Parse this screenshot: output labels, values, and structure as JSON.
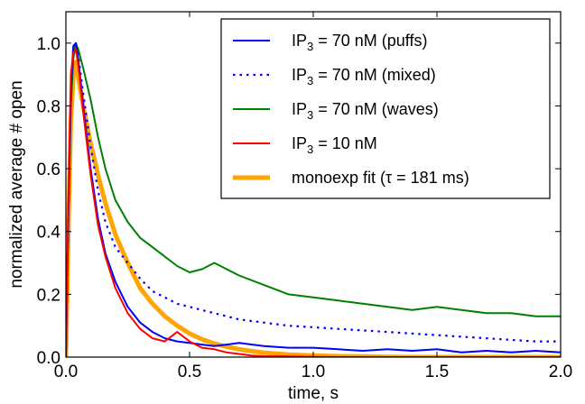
{
  "chart_data": {
    "type": "line",
    "xlabel": "time, s",
    "ylabel": "normalized average # open",
    "xlim": [
      0.0,
      2.0
    ],
    "ylim": [
      0.0,
      1.1
    ],
    "xticks": [
      0.0,
      0.5,
      1.0,
      1.5,
      2.0
    ],
    "xtick_labels": [
      "0.0",
      "0.5",
      "1.0",
      "1.5",
      "2.0"
    ],
    "yticks": [
      0.0,
      0.2,
      0.4,
      0.6,
      0.8,
      1.0
    ],
    "ytick_labels": [
      "0.0",
      "0.2",
      "0.4",
      "0.6",
      "0.8",
      "1.0"
    ],
    "grid": false,
    "legend_position": "top-right",
    "series": [
      {
        "name": "IP3 = 70 nM (puffs)",
        "label_main": "IP",
        "label_sub": "3",
        "label_rest": " = 70 nM (puffs)",
        "color": "#0000ff",
        "style": "solid",
        "x": [
          0.0,
          0.01,
          0.02,
          0.03,
          0.04,
          0.05,
          0.07,
          0.1,
          0.13,
          0.16,
          0.2,
          0.25,
          0.3,
          0.35,
          0.4,
          0.45,
          0.5,
          0.55,
          0.6,
          0.65,
          0.7,
          0.8,
          0.9,
          1.0,
          1.1,
          1.2,
          1.3,
          1.4,
          1.5,
          1.6,
          1.7,
          1.8,
          1.9,
          2.0
        ],
        "y": [
          0.0,
          0.45,
          0.85,
          0.99,
          1.0,
          0.95,
          0.8,
          0.6,
          0.44,
          0.33,
          0.24,
          0.16,
          0.11,
          0.08,
          0.06,
          0.05,
          0.045,
          0.04,
          0.035,
          0.04,
          0.045,
          0.035,
          0.03,
          0.03,
          0.025,
          0.02,
          0.025,
          0.02,
          0.025,
          0.015,
          0.02,
          0.015,
          0.02,
          0.015
        ]
      },
      {
        "name": "IP3 = 70 nM (mixed)",
        "label_main": "IP",
        "label_sub": "3",
        "label_rest": " = 70 nM (mixed)",
        "color": "#0000ff",
        "style": "dotted",
        "x": [
          0.0,
          0.01,
          0.02,
          0.03,
          0.04,
          0.05,
          0.07,
          0.1,
          0.13,
          0.16,
          0.2,
          0.25,
          0.3,
          0.35,
          0.4,
          0.45,
          0.5,
          0.55,
          0.6,
          0.65,
          0.7,
          0.8,
          0.9,
          1.0,
          1.1,
          1.2,
          1.3,
          1.4,
          1.5,
          1.6,
          1.7,
          1.8,
          1.9,
          2.0
        ],
        "y": [
          0.0,
          0.45,
          0.85,
          0.99,
          1.0,
          0.96,
          0.84,
          0.67,
          0.53,
          0.43,
          0.35,
          0.3,
          0.25,
          0.21,
          0.19,
          0.17,
          0.16,
          0.15,
          0.14,
          0.13,
          0.12,
          0.11,
          0.1,
          0.095,
          0.09,
          0.085,
          0.08,
          0.075,
          0.07,
          0.065,
          0.06,
          0.055,
          0.05,
          0.05
        ]
      },
      {
        "name": "IP3 = 70 nM (waves)",
        "label_main": "IP",
        "label_sub": "3",
        "label_rest": " = 70 nM (waves)",
        "color": "#008000",
        "style": "solid",
        "x": [
          0.0,
          0.01,
          0.02,
          0.03,
          0.04,
          0.05,
          0.07,
          0.1,
          0.13,
          0.16,
          0.2,
          0.25,
          0.3,
          0.35,
          0.4,
          0.45,
          0.5,
          0.55,
          0.6,
          0.65,
          0.7,
          0.8,
          0.9,
          1.0,
          1.1,
          1.2,
          1.3,
          1.4,
          1.5,
          1.6,
          1.7,
          1.8,
          1.9,
          2.0
        ],
        "y": [
          0.0,
          0.45,
          0.8,
          0.95,
          1.0,
          0.98,
          0.92,
          0.82,
          0.7,
          0.6,
          0.5,
          0.43,
          0.38,
          0.35,
          0.32,
          0.29,
          0.27,
          0.28,
          0.3,
          0.28,
          0.26,
          0.23,
          0.2,
          0.19,
          0.18,
          0.17,
          0.16,
          0.15,
          0.16,
          0.15,
          0.14,
          0.14,
          0.13,
          0.13
        ]
      },
      {
        "name": "IP3 = 10 nM",
        "label_main": "IP",
        "label_sub": "3",
        "label_rest": " = 10 nM",
        "color": "#ff0000",
        "style": "solid",
        "x": [
          0.0,
          0.01,
          0.02,
          0.03,
          0.04,
          0.05,
          0.07,
          0.1,
          0.13,
          0.16,
          0.2,
          0.25,
          0.3,
          0.35,
          0.4,
          0.45,
          0.5,
          0.55,
          0.6,
          0.65,
          0.7,
          0.75,
          0.8,
          0.9,
          1.0,
          1.1,
          1.2,
          1.3,
          1.4,
          1.5,
          1.6,
          1.7,
          1.8,
          1.9,
          2.0
        ],
        "y": [
          0.0,
          0.5,
          0.9,
          0.97,
          0.98,
          0.93,
          0.78,
          0.58,
          0.42,
          0.32,
          0.22,
          0.14,
          0.09,
          0.06,
          0.05,
          0.08,
          0.05,
          0.03,
          0.025,
          0.015,
          0.01,
          0.005,
          0.003,
          0.002,
          0.001,
          0.0,
          0.0,
          0.0,
          0.0,
          0.0,
          0.0,
          0.0,
          0.0,
          0.0,
          0.0
        ]
      },
      {
        "name": "monoexp fit (τ = 181 ms)",
        "label_main": "monoexp fit (τ  =  181 ms)",
        "label_sub": "",
        "label_rest": "",
        "color": "#ffa500",
        "style": "thick",
        "x": [
          0.0,
          0.01,
          0.02,
          0.03,
          0.04,
          0.05,
          0.07,
          0.1,
          0.13,
          0.16,
          0.2,
          0.25,
          0.3,
          0.35,
          0.4,
          0.45,
          0.5,
          0.55,
          0.6,
          0.65,
          0.7,
          0.75,
          0.8,
          0.9,
          1.0,
          1.1,
          1.2,
          1.3,
          1.4,
          1.5,
          1.6,
          1.7,
          1.8,
          1.9,
          2.0
        ],
        "y": [
          0.0,
          0.4,
          0.75,
          0.9,
          0.94,
          0.89,
          0.8,
          0.68,
          0.58,
          0.49,
          0.39,
          0.3,
          0.22,
          0.17,
          0.13,
          0.1,
          0.075,
          0.057,
          0.043,
          0.033,
          0.025,
          0.019,
          0.014,
          0.008,
          0.005,
          0.003,
          0.002,
          0.001,
          0.0,
          0.0,
          0.0,
          0.0,
          0.0,
          0.0,
          0.0
        ]
      }
    ]
  }
}
